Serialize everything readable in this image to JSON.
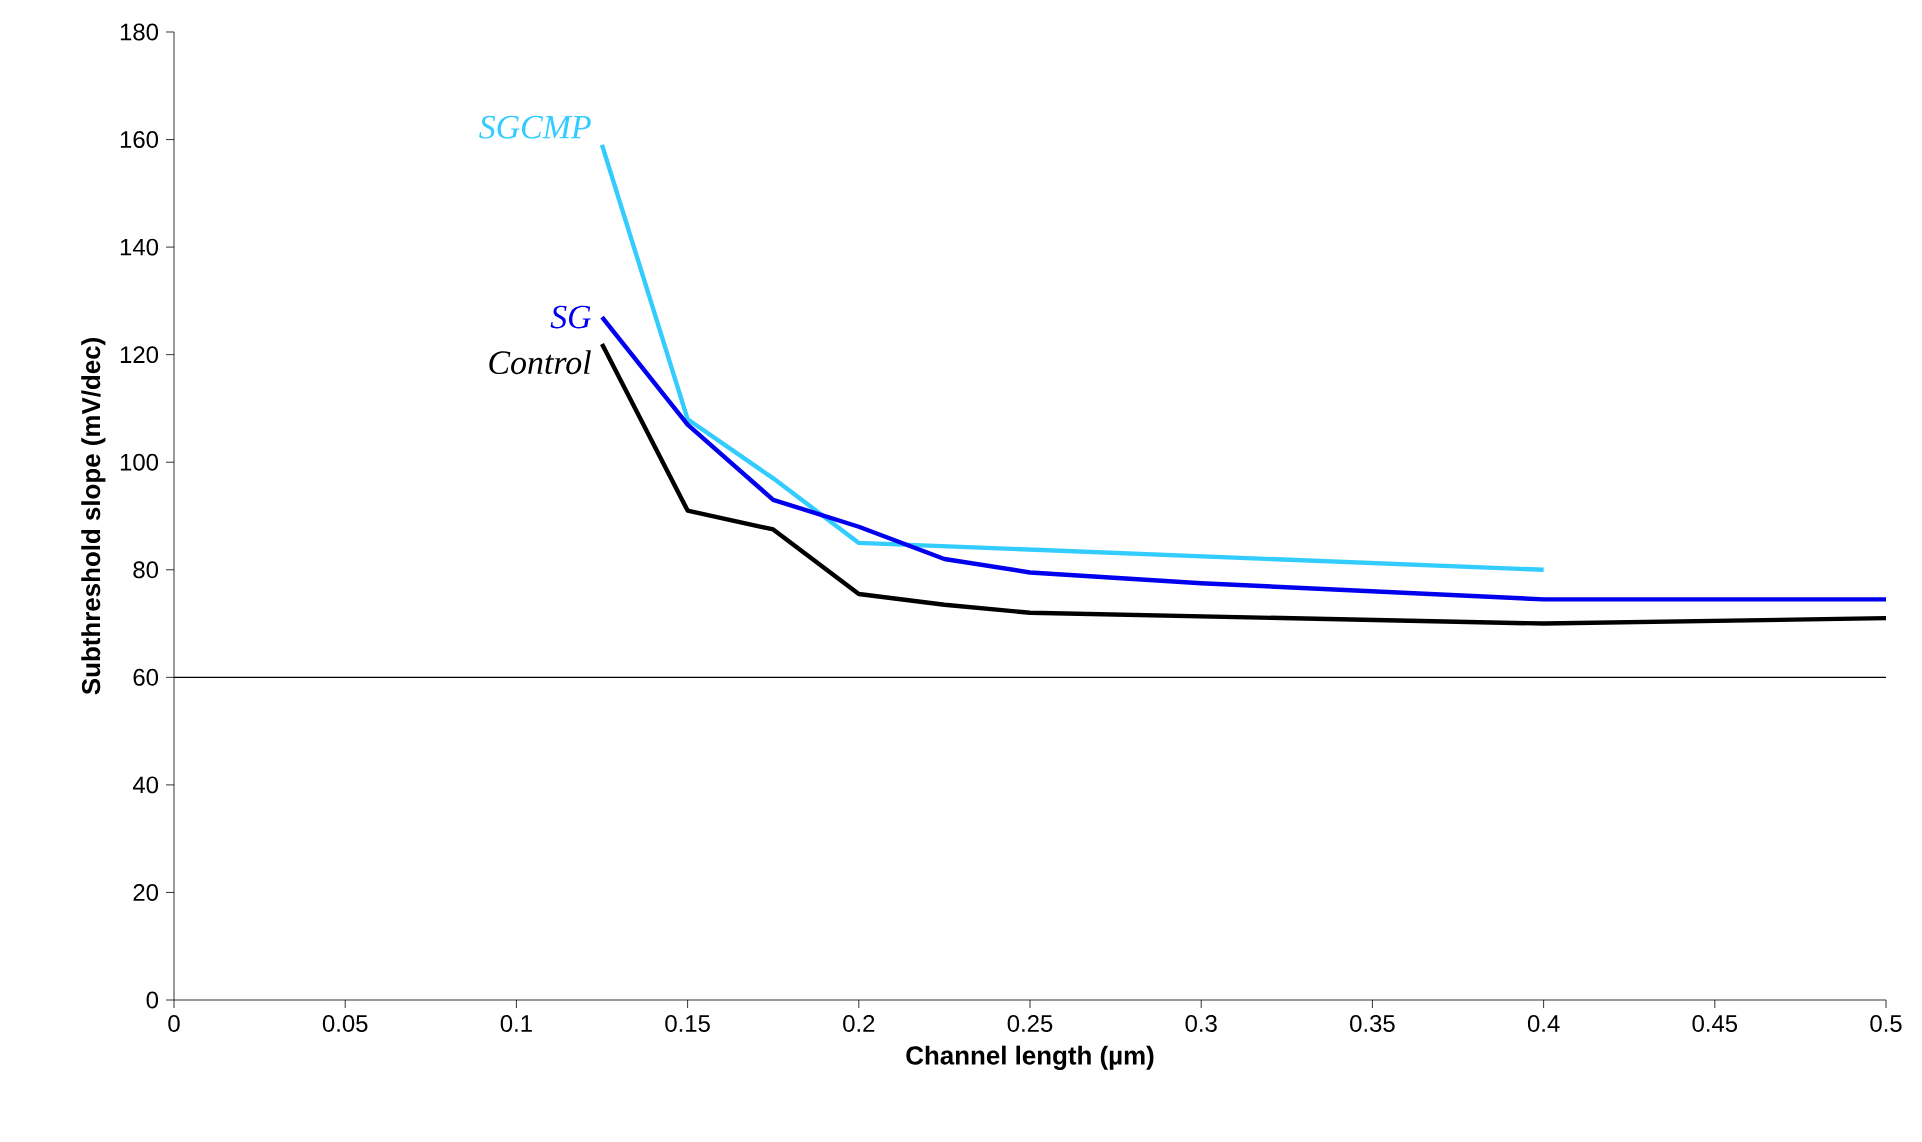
{
  "chart_data": {
    "type": "line",
    "xlabel": "Channel length (µm)",
    "ylabel": "Subthreshold slope (mV/dec)",
    "xlim": [
      0,
      0.5
    ],
    "ylim": [
      0,
      180
    ],
    "xticks": [
      0,
      0.05,
      0.1,
      0.15,
      0.2,
      0.25,
      0.3,
      0.35,
      0.4,
      0.45,
      0.5
    ],
    "yticks": [
      0,
      20,
      40,
      60,
      80,
      100,
      120,
      140,
      160,
      180
    ],
    "grid": false,
    "legend": false,
    "marker": "none",
    "line_style": "solid",
    "ref_lines": [
      {
        "axis": "y",
        "value": 60,
        "color": "#000000"
      }
    ],
    "series": [
      {
        "name": "SGCMP",
        "color": "#33ccff",
        "x": [
          0.125,
          0.15,
          0.175,
          0.2,
          0.4
        ],
        "values": [
          159,
          108,
          97,
          85,
          80
        ]
      },
      {
        "name": "SG",
        "color": "#0000ee",
        "x": [
          0.125,
          0.15,
          0.175,
          0.2,
          0.225,
          0.25,
          0.3,
          0.4,
          0.5
        ],
        "values": [
          127,
          107,
          93,
          88,
          82,
          79.5,
          77.5,
          74.5,
          74.5
        ]
      },
      {
        "name": "Control",
        "color": "#000000",
        "x": [
          0.125,
          0.15,
          0.175,
          0.2,
          0.225,
          0.25,
          0.4,
          0.5
        ],
        "values": [
          122,
          91,
          87.5,
          75.5,
          73.5,
          72,
          70,
          71
        ]
      }
    ]
  }
}
